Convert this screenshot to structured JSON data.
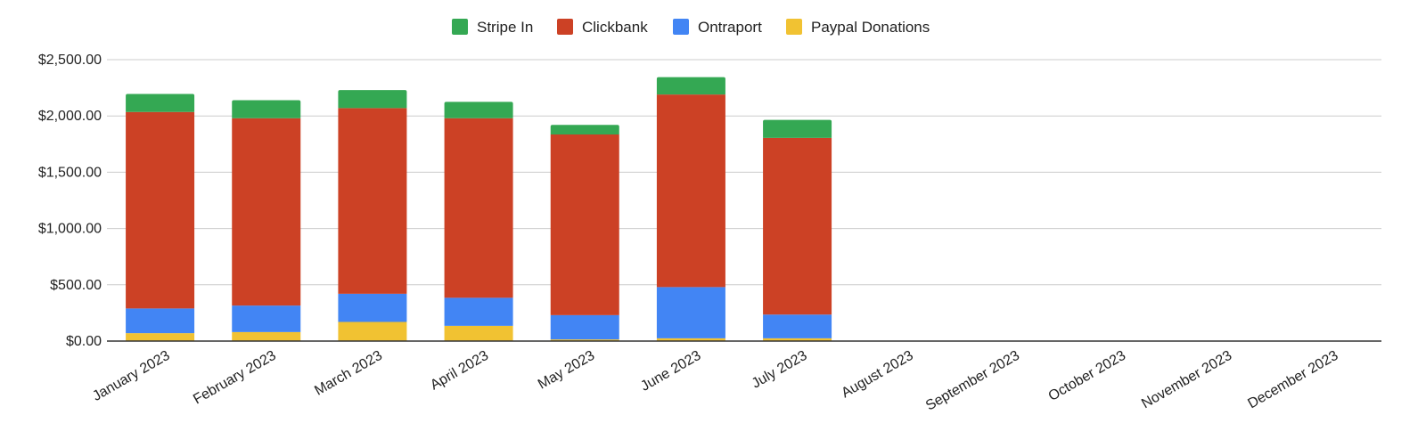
{
  "chart_data": {
    "type": "bar",
    "stacked": true,
    "categories": [
      "January 2023",
      "February 2023",
      "March 2023",
      "April 2023",
      "May 2023",
      "June 2023",
      "July 2023",
      "August 2023",
      "September 2023",
      "October 2023",
      "November 2023",
      "December 2023"
    ],
    "series": [
      {
        "name": "Paypal Donations",
        "color": "#f1c232",
        "values": [
          70,
          80,
          170,
          135,
          15,
          25,
          25,
          0,
          0,
          0,
          0,
          0
        ]
      },
      {
        "name": "Ontraport",
        "color": "#4285f4",
        "values": [
          220,
          235,
          250,
          250,
          215,
          455,
          210,
          0,
          0,
          0,
          0,
          0
        ]
      },
      {
        "name": "Clickbank",
        "color": "#cc4125",
        "values": [
          1745,
          1665,
          1650,
          1595,
          1605,
          1710,
          1570,
          0,
          0,
          0,
          0,
          0
        ]
      },
      {
        "name": "Stripe In",
        "color": "#34a853",
        "values": [
          160,
          160,
          160,
          145,
          85,
          155,
          160,
          0,
          0,
          0,
          0,
          0
        ]
      }
    ],
    "legend_order": [
      "Stripe In",
      "Clickbank",
      "Ontraport",
      "Paypal Donations"
    ],
    "legend_position": "top",
    "y_ticks": [
      "$0.00",
      "$500.00",
      "$1,000.00",
      "$1,500.00",
      "$2,000.00",
      "$2,500.00"
    ],
    "ylim": [
      0,
      2500
    ],
    "grid": true,
    "title": "",
    "xlabel": "",
    "ylabel": ""
  }
}
